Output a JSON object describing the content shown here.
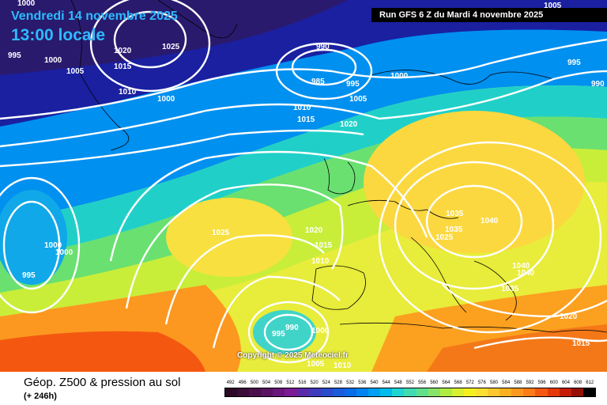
{
  "header": {
    "date": "Vendredi 14 novembre 2025",
    "local_time": "13:00 locale",
    "run_info": "Run GFS 6 Z du Mardi 4 novembre 2025"
  },
  "copyright": "Copyright © 2025 Meteociel.fr",
  "footer": {
    "product_title": "Géop. Z500 & pression au sol",
    "lead_time": "(+ 246h)"
  },
  "legend": {
    "values": [
      "492",
      "496",
      "500",
      "504",
      "508",
      "512",
      "516",
      "520",
      "524",
      "528",
      "532",
      "536",
      "540",
      "544",
      "548",
      "552",
      "556",
      "560",
      "564",
      "568",
      "572",
      "576",
      "580",
      "584",
      "588",
      "592",
      "596",
      "600",
      "604",
      "608",
      "612"
    ],
    "colors": [
      "#2a0a26",
      "#3a0c38",
      "#4a0f4c",
      "#5a1262",
      "#6a167a",
      "#7b1a94",
      "#5a2aa8",
      "#3d3cbc",
      "#2a4ccc",
      "#1a5cdc",
      "#0a6ce8",
      "#0084f0",
      "#00a0f4",
      "#00bcec",
      "#20d4d4",
      "#40dcb0",
      "#60e08c",
      "#88e468",
      "#b0ec44",
      "#d8f030",
      "#f4f020",
      "#fce030",
      "#fcc830",
      "#fcb020",
      "#fc9820",
      "#fc7c18",
      "#f45810",
      "#e43808",
      "#c41c04",
      "#941004",
      "#000000"
    ]
  },
  "isobar_labels": [
    "1000",
    "995",
    "1000",
    "1005",
    "1020",
    "1025",
    "1015",
    "1010",
    "1000",
    "990",
    "985",
    "995",
    "1000",
    "1005",
    "1005",
    "995",
    "990",
    "1010",
    "1015",
    "1020",
    "1025",
    "1000",
    "1000",
    "995",
    "1020",
    "1015",
    "1010",
    "1035",
    "1040",
    "1035",
    "1025",
    "1040",
    "1040",
    "1035",
    "1020",
    "1015",
    "990",
    "995",
    "1000",
    "1005",
    "1010"
  ],
  "colors": {
    "z500_low": "#1a2a8c",
    "z500_high": "#f45810",
    "isobar": "#ffffff",
    "header_text": "#33b8ff"
  }
}
